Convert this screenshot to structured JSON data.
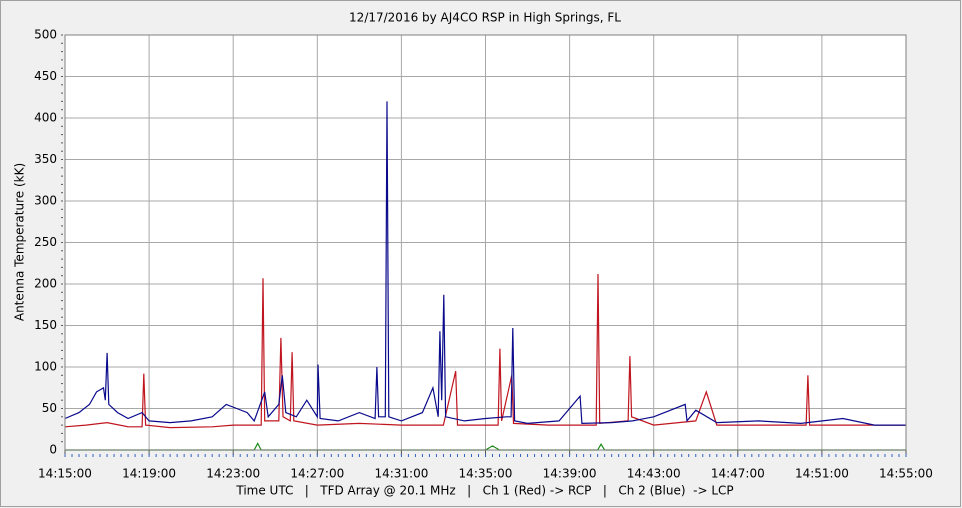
{
  "chart_data": {
    "type": "line",
    "title": "12/17/2016  by  AJ4CO RSP  in  High Springs, FL",
    "y_label": "Antenna Temperature (kK)",
    "x_label": "Time UTC   |   TFD Array @ 20.1 MHz   |   Ch 1 (Red) -> RCP   |   Ch 2 (Blue)  -> LCP",
    "xlim": [
      "14:15:00",
      "14:55:00"
    ],
    "xticks": [
      "14:15:00",
      "14:19:00",
      "14:23:00",
      "14:27:00",
      "14:31:00",
      "14:35:00",
      "14:39:00",
      "14:43:00",
      "14:47:00",
      "14:51:00",
      "14:55:00"
    ],
    "ylim": [
      0,
      500
    ],
    "yticks": [
      0,
      50,
      100,
      150,
      200,
      250,
      300,
      350,
      400,
      450,
      500
    ],
    "grid": true,
    "series": [
      {
        "color": "#c0141e",
        "x": [
          "14:15:00",
          "14:16:00",
          "14:17:00",
          "14:18:00",
          "14:18:40",
          "14:18:45",
          "14:18:50",
          "14:20:00",
          "14:22:00",
          "14:23:00",
          "14:24:00",
          "14:24:20",
          "14:24:25",
          "14:24:30",
          "14:25:10",
          "14:25:16",
          "14:25:22",
          "14:25:43",
          "14:25:48",
          "14:25:53",
          "14:27:00",
          "14:29:00",
          "14:31:00",
          "14:33:00",
          "14:33:35",
          "14:33:40",
          "14:35:36",
          "14:35:41",
          "14:35:46",
          "14:36:15",
          "14:36:20",
          "14:38:00",
          "14:40:16",
          "14:40:21",
          "14:40:26",
          "14:41:47",
          "14:41:52",
          "14:41:57",
          "14:43:00",
          "14:45:00",
          "14:45:30",
          "14:46:00",
          "14:49:00",
          "14:50:15",
          "14:50:20",
          "14:50:25",
          "14:53:00",
          "14:55:00"
        ],
        "values": [
          28,
          30,
          33,
          28,
          28,
          92,
          30,
          27,
          28,
          30,
          30,
          30,
          207,
          35,
          35,
          135,
          40,
          35,
          118,
          35,
          30,
          32,
          30,
          30,
          95,
          30,
          30,
          122,
          35,
          90,
          32,
          30,
          30,
          212,
          32,
          35,
          113,
          40,
          30,
          35,
          70,
          30,
          30,
          30,
          90,
          30,
          30,
          30
        ]
      },
      {
        "color": "#0a0a8c",
        "x": [
          "14:15:00",
          "14:15:40",
          "14:16:10",
          "14:16:30",
          "14:16:50",
          "14:16:55",
          "14:17:00",
          "14:17:05",
          "14:17:30",
          "14:18:00",
          "14:18:40",
          "14:19:00",
          "14:20:00",
          "14:21:00",
          "14:22:00",
          "14:22:40",
          "14:23:10",
          "14:23:40",
          "14:24:00",
          "14:24:30",
          "14:24:40",
          "14:25:10",
          "14:25:20",
          "14:25:30",
          "14:26:00",
          "14:26:30",
          "14:27:00",
          "14:27:02",
          "14:27:08",
          "14:28:00",
          "14:29:00",
          "14:29:45",
          "14:29:50",
          "14:29:55",
          "14:30:14",
          "14:30:19",
          "14:30:24",
          "14:31:00",
          "14:32:00",
          "14:32:30",
          "14:32:45",
          "14:32:50",
          "14:32:55",
          "14:33:01",
          "14:33:06",
          "14:34:00",
          "14:35:00",
          "14:36:00",
          "14:36:13",
          "14:36:18",
          "14:36:23",
          "14:37:00",
          "14:38:30",
          "14:39:30",
          "14:39:35",
          "14:41:00",
          "14:42:00",
          "14:43:00",
          "14:44:30",
          "14:44:35",
          "14:45:00",
          "14:46:00",
          "14:48:00",
          "14:50:00",
          "14:52:00",
          "14:53:30",
          "14:55:00"
        ],
        "values": [
          38,
          45,
          55,
          70,
          75,
          60,
          117,
          55,
          45,
          38,
          45,
          35,
          33,
          35,
          40,
          55,
          50,
          45,
          35,
          70,
          40,
          55,
          90,
          45,
          40,
          60,
          40,
          103,
          38,
          35,
          45,
          38,
          100,
          40,
          40,
          420,
          40,
          35,
          45,
          75,
          40,
          143,
          60,
          187,
          40,
          35,
          38,
          40,
          40,
          147,
          35,
          32,
          35,
          65,
          32,
          33,
          35,
          40,
          55,
          35,
          48,
          33,
          35,
          32,
          38,
          30,
          30
        ]
      },
      {
        "color": "#1a8a1a",
        "x": [
          "14:15:00",
          "14:24:00",
          "14:24:10",
          "14:24:20",
          "14:35:00",
          "14:35:20",
          "14:35:40",
          "14:40:20",
          "14:40:30",
          "14:40:40",
          "14:55:00"
        ],
        "values": [
          0,
          0,
          8,
          0,
          0,
          5,
          0,
          0,
          7,
          0,
          0
        ]
      }
    ]
  }
}
